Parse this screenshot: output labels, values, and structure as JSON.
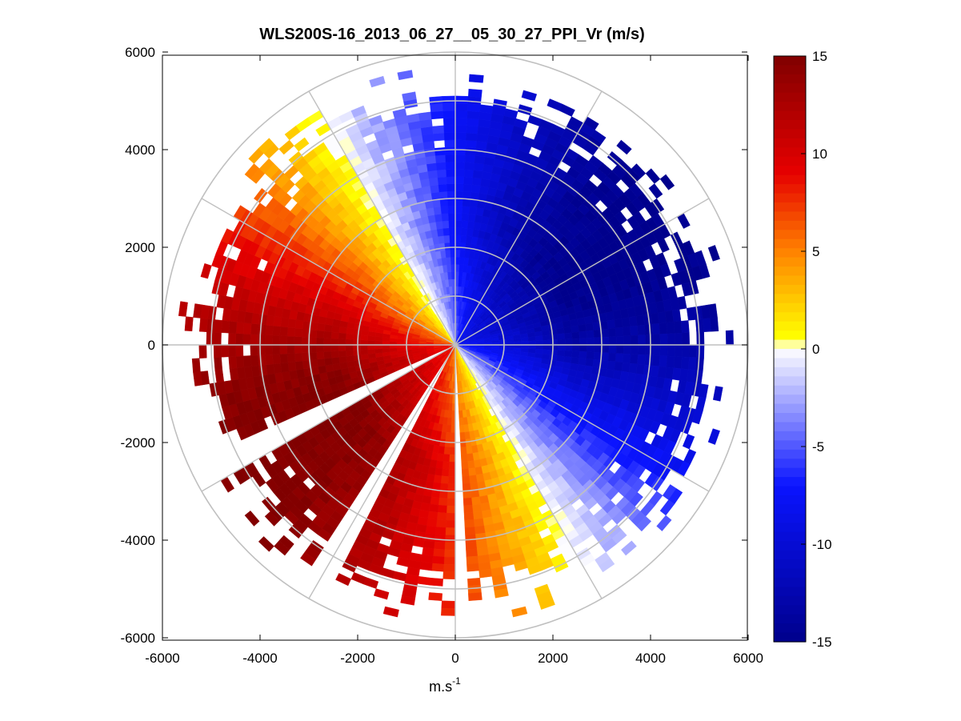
{
  "chart_data": {
    "type": "heatmap",
    "subtype": "polar-ppi",
    "title": "WLS200S-16_2013_06_27__05_30_27_PPI_Vr (m/s)",
    "xlabel": "m.s",
    "xlabel_exponent": "-1",
    "ylabel": "",
    "xlim": [
      -6000,
      6000
    ],
    "ylim": [
      -6000,
      6000
    ],
    "xticks": [
      -6000,
      -4000,
      -2000,
      0,
      2000,
      4000,
      6000
    ],
    "yticks": [
      6000,
      4000,
      2000,
      0,
      -2000,
      -4000,
      -6000
    ],
    "range_rings": [
      1000,
      2000,
      3000,
      4000,
      5000,
      6000
    ],
    "spoke_angles_deg": [
      0,
      30,
      60,
      90,
      120,
      150,
      180,
      210,
      240,
      270,
      300,
      330
    ],
    "approaching_direction_deg": 60,
    "max_radial_velocity": 15,
    "missing_sectors_deg": [
      [
        177,
        181
      ],
      [
        206,
        212
      ],
      [
        241,
        245
      ]
    ],
    "colorbar": {
      "min": -15,
      "max": 15,
      "ticks": [
        15,
        10,
        5,
        0,
        -5,
        -10,
        -15
      ],
      "colormap": "blue-white-yellow-red"
    },
    "colors": {
      "grid": "#c0c0c0",
      "negative_max": "#00008c",
      "negative_mid": "#0a14ff",
      "zero": "#ffffff",
      "positive_low": "#ffff00",
      "positive_mid": "#ff8200",
      "positive_high": "#e60000",
      "positive_max": "#800000"
    }
  }
}
